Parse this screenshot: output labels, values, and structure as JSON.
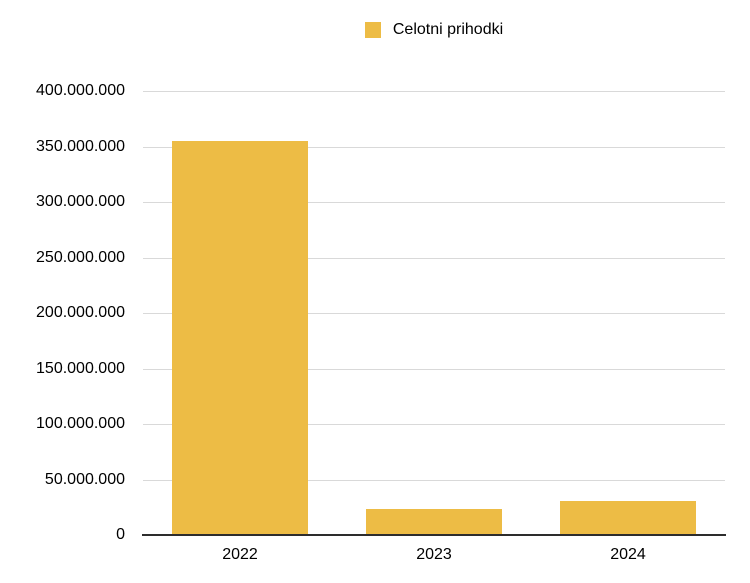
{
  "legend": {
    "label": "Celotni prihodki"
  },
  "chart_data": {
    "type": "bar",
    "title": "",
    "categories": [
      "2022",
      "2023",
      "2024"
    ],
    "series": [
      {
        "name": "Celotni prihodki",
        "values": [
          355000000,
          23000000,
          31000000
        ]
      }
    ],
    "ylim": [
      0,
      400000000
    ],
    "ytick_step": 50000000,
    "ytick_labels": [
      "0",
      "50.000.000",
      "100.000.000",
      "150.000.000",
      "200.000.000",
      "250.000.000",
      "300.000.000",
      "350.000.000",
      "400.000.000"
    ],
    "grid": true,
    "legend_position": "top",
    "bar_color": "#EDBC45",
    "grid_color": "#D9D9D9",
    "axis_color": "#2D2D2D",
    "label_color": "#000000"
  }
}
